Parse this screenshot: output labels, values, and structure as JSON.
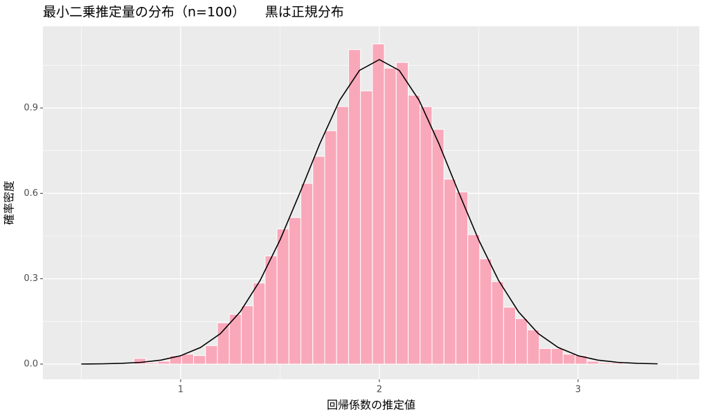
{
  "chart_data": {
    "type": "histogram",
    "title": "最小二乗推定量の分布（n=100）　　黒は正規分布",
    "x_label": "回帰係数の推定値",
    "y_label": "確率密度",
    "bins": [
      0.765,
      0.825,
      0.885,
      0.945,
      1.005,
      1.065,
      1.125,
      1.185,
      1.245,
      1.305,
      1.365,
      1.425,
      1.485,
      1.545,
      1.605,
      1.665,
      1.725,
      1.785,
      1.845,
      1.905,
      1.965,
      2.025,
      2.085,
      2.145,
      2.205,
      2.265,
      2.325,
      2.385,
      2.445,
      2.505,
      2.565,
      2.625,
      2.685,
      2.745,
      2.805,
      2.865,
      2.925,
      2.985,
      3.045,
      3.105,
      3.165,
      3.225,
      3.285,
      3.345
    ],
    "values": [
      0.02,
      0.005,
      0.01,
      0.03,
      0.035,
      0.03,
      0.065,
      0.145,
      0.175,
      0.205,
      0.285,
      0.38,
      0.475,
      0.515,
      0.635,
      0.73,
      0.82,
      0.905,
      1.105,
      0.96,
      1.125,
      1.04,
      1.06,
      0.945,
      0.905,
      0.825,
      0.65,
      0.605,
      0.455,
      0.37,
      0.29,
      0.2,
      0.16,
      0.12,
      0.055,
      0.055,
      0.035,
      0.03,
      0.01,
      0.005,
      0.005,
      0.003,
      0.003
    ],
    "color": "#f9a8ba",
    "overlay": {
      "type": "line",
      "color": "#000000",
      "x": [
        0.5,
        0.6,
        0.7,
        0.8,
        0.9,
        1.0,
        1.1,
        1.2,
        1.3,
        1.4,
        1.5,
        1.6,
        1.7,
        1.8,
        1.9,
        2.0,
        2.1,
        2.2,
        2.3,
        2.4,
        2.5,
        2.6,
        2.7,
        2.8,
        2.9,
        3.0,
        3.1,
        3.2,
        3.3,
        3.4
      ],
      "values": [
        0.0003,
        0.0009,
        0.0025,
        0.0061,
        0.0139,
        0.0295,
        0.0584,
        0.107,
        0.184,
        0.294,
        0.436,
        0.602,
        0.774,
        0.927,
        1.032,
        1.07,
        1.032,
        0.927,
        0.774,
        0.602,
        0.436,
        0.294,
        0.184,
        0.107,
        0.0584,
        0.0295,
        0.0139,
        0.0061,
        0.0025,
        0.0009
      ]
    },
    "xlim": [
      0.307,
      3.61
    ],
    "ylim": [
      -0.0535,
      1.187
    ],
    "xticks": [
      1,
      2,
      3
    ],
    "yticks": [
      {
        "value": 0,
        "label": "0.0"
      },
      0.3,
      0.6,
      0.9
    ],
    "x_minor_grid": [
      0.5,
      1.5,
      2.5,
      3.5
    ],
    "y_minor_grid": [
      0.15,
      0.45,
      0.75,
      1.05
    ],
    "grid": true
  }
}
